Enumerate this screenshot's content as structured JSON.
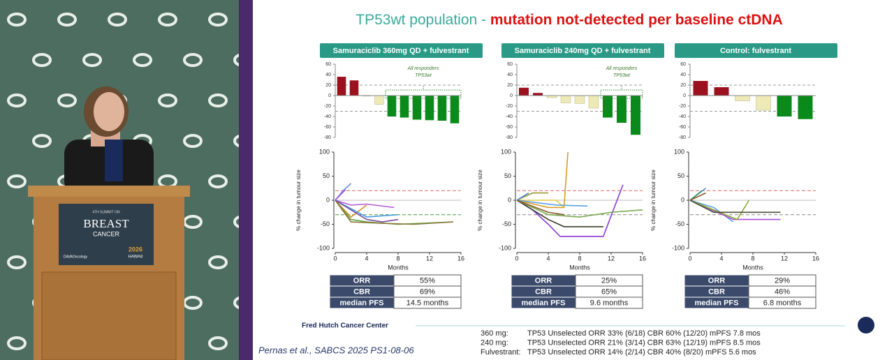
{
  "podium": {
    "line1": "4TH SUMMIT ON",
    "line2": "BREAST",
    "line3": "CANCER",
    "logo1": "DAVAOncology",
    "logo2a": "2026",
    "logo2b": "HAWAII"
  },
  "slide": {
    "title_lead": "TP53wt population - ",
    "title_emphasis": "mutation not-detected per baseline ctDNA",
    "panels": [
      {
        "header": "Samuraciclib 360mg QD + fulvestrant",
        "waterfall": {
          "type": "bar",
          "ylim": [
            -80,
            60
          ],
          "yticks": [
            60,
            40,
            20,
            0,
            -20,
            -40,
            -60,
            -80
          ],
          "reference_lines": [
            20,
            -30
          ],
          "values": [
            36,
            29,
            -1,
            -17,
            -40,
            -42,
            -46,
            -47,
            -48,
            -53
          ],
          "colors": [
            "#9b111e",
            "#9b111e",
            "#eeeab8",
            "#eeeab8",
            "#0a8a1a",
            "#0a8a1a",
            "#0a8a1a",
            "#0a8a1a",
            "#0a8a1a",
            "#0a8a1a"
          ],
          "annotation": [
            "All responders",
            "TP53wt"
          ]
        },
        "spider": {
          "type": "line",
          "ylabel": "% change in tumour size",
          "xlabel": "Months",
          "xlim": [
            0,
            16
          ],
          "xticks": [
            0,
            4,
            8,
            12,
            16
          ],
          "ylim": [
            -100,
            100
          ],
          "yticks": [
            100,
            50,
            0,
            -50,
            -100
          ],
          "reference_lines": [
            {
              "value": 20,
              "color": "#e06666"
            },
            {
              "value": -30,
              "color": "#3a9a3a"
            },
            {
              "value": 0,
              "color": "#bbbbbb"
            }
          ],
          "series": [
            {
              "color": "#6a8ee8",
              "x": [
                0,
                1,
                2
              ],
              "values": [
                0,
                20,
                35
              ]
            },
            {
              "color": "#a64fd6",
              "x": [
                0,
                1.3
              ],
              "values": [
                0,
                22
              ]
            },
            {
              "color": "#b560d8",
              "x": [
                0,
                2,
                4,
                7.5
              ],
              "values": [
                0,
                -10,
                -8,
                -15
              ]
            },
            {
              "color": "#e08a2a",
              "x": [
                0,
                2,
                4
              ],
              "values": [
                0,
                -35,
                -10
              ]
            },
            {
              "color": "#5aa040",
              "x": [
                0,
                2,
                4,
                8,
                15
              ],
              "values": [
                0,
                -40,
                -45,
                -50,
                -45
              ]
            },
            {
              "color": "#8a7a3a",
              "x": [
                0,
                2,
                6,
                10,
                15
              ],
              "values": [
                0,
                -45,
                -48,
                -50,
                -45
              ]
            },
            {
              "color": "#4a9ae0",
              "x": [
                0,
                4,
                8
              ],
              "values": [
                0,
                -35,
                -30
              ]
            },
            {
              "color": "#7a4aa0",
              "x": [
                0,
                4,
                6,
                8
              ],
              "values": [
                0,
                -40,
                -45,
                -40
              ]
            }
          ]
        },
        "table": [
          [
            "ORR",
            "55%"
          ],
          [
            "CBR",
            "69%"
          ],
          [
            "median PFS",
            "14.5 months"
          ]
        ]
      },
      {
        "header": "Samuraciclib 240mg QD + fulvestrant",
        "waterfall": {
          "type": "bar",
          "ylim": [
            -80,
            60
          ],
          "yticks": [
            60,
            40,
            20,
            0,
            -20,
            -40,
            -60,
            -80
          ],
          "reference_lines": [
            20,
            -30
          ],
          "values": [
            15,
            5,
            -4,
            -14,
            -15,
            -24,
            -42,
            -52,
            -75
          ],
          "colors": [
            "#9b111e",
            "#9b111e",
            "#eeeab8",
            "#eeeab8",
            "#eeeab8",
            "#eeeab8",
            "#0a8a1a",
            "#0a8a1a",
            "#0a8a1a"
          ],
          "annotation": [
            "All responders",
            "TP53wt"
          ]
        },
        "spider": {
          "type": "line",
          "ylabel": "% change in tumour size",
          "xlabel": "Months",
          "xlim": [
            0,
            16
          ],
          "xticks": [
            0,
            4,
            8,
            12,
            16
          ],
          "ylim": [
            -100,
            100
          ],
          "yticks": [
            100,
            50,
            0,
            -50,
            -100
          ],
          "reference_lines": [
            {
              "value": 20,
              "color": "#e06666"
            },
            {
              "value": -30,
              "color": "#888888"
            },
            {
              "value": 0,
              "color": "#bbbbbb"
            }
          ],
          "series": [
            {
              "color": "#d99a2a",
              "x": [
                0,
                4,
                6,
                6.5
              ],
              "values": [
                0,
                -15,
                -15,
                100
              ]
            },
            {
              "color": "#e8c840",
              "x": [
                0,
                3,
                5,
                6
              ],
              "values": [
                0,
                0,
                0,
                -15
              ]
            },
            {
              "color": "#9a9a30",
              "x": [
                0,
                2,
                4
              ],
              "values": [
                0,
                15,
                15
              ]
            },
            {
              "color": "#8a3ad8",
              "x": [
                0,
                2,
                4,
                5.5,
                11,
                13.5
              ],
              "values": [
                0,
                -20,
                -50,
                -75,
                -75,
                32
              ]
            },
            {
              "color": "#3a3a2a",
              "x": [
                0,
                4,
                6,
                11
              ],
              "values": [
                0,
                -40,
                -55,
                -55
              ]
            },
            {
              "color": "#7aaa50",
              "x": [
                0,
                4,
                8,
                12,
                16
              ],
              "values": [
                0,
                -30,
                -35,
                -25,
                -20
              ]
            },
            {
              "color": "#4a8ae0",
              "x": [
                0,
                1.5
              ],
              "values": [
                0,
                15
              ]
            },
            {
              "color": "#5aa0e8",
              "x": [
                0,
                5,
                9
              ],
              "values": [
                0,
                -10,
                -12
              ]
            },
            {
              "color": "#8a5a2a",
              "x": [
                0,
                4,
                6
              ],
              "values": [
                0,
                -25,
                -30
              ]
            }
          ]
        },
        "table": [
          [
            "ORR",
            "25%"
          ],
          [
            "CBR",
            "65%"
          ],
          [
            "median PFS",
            "9.6 months"
          ]
        ]
      },
      {
        "header": "Control: fulvestrant",
        "waterfall": {
          "type": "bar",
          "ylim": [
            -80,
            60
          ],
          "yticks": [
            60,
            40,
            20,
            0,
            -20,
            -40,
            -60,
            -80
          ],
          "reference_lines": [
            20,
            -30
          ],
          "values": [
            28,
            16,
            -10,
            -28,
            -40,
            -45
          ],
          "colors": [
            "#9b111e",
            "#9b111e",
            "#eeeab8",
            "#eeeab8",
            "#0a8a1a",
            "#0a8a1a"
          ]
        },
        "spider": {
          "type": "line",
          "ylabel": "% change in tumour size",
          "xlabel": "Months",
          "xlim": [
            0,
            16
          ],
          "xticks": [
            0,
            4,
            8,
            12,
            16
          ],
          "ylim": [
            -100,
            100
          ],
          "yticks": [
            100,
            50,
            0,
            -50,
            -100
          ],
          "reference_lines": [
            {
              "value": 20,
              "color": "#e06666"
            },
            {
              "value": -30,
              "color": "#888888"
            },
            {
              "value": 0,
              "color": "#bbbbbb"
            }
          ],
          "series": [
            {
              "color": "#4a8ae0",
              "x": [
                0,
                2
              ],
              "values": [
                0,
                25
              ]
            },
            {
              "color": "#3a9a5a",
              "x": [
                0,
                1.5
              ],
              "values": [
                0,
                20
              ]
            },
            {
              "color": "#8a5a2a",
              "x": [
                0,
                2
              ],
              "values": [
                0,
                15
              ]
            },
            {
              "color": "#5aa0e8",
              "x": [
                0,
                3,
                5.5
              ],
              "values": [
                0,
                -15,
                -45
              ]
            },
            {
              "color": "#a64fd6",
              "x": [
                0,
                5.5,
                8,
                11.5
              ],
              "values": [
                0,
                -40,
                -40,
                -40
              ]
            },
            {
              "color": "#8aaa30",
              "x": [
                0,
                6,
                7.5
              ],
              "values": [
                0,
                -40,
                0
              ]
            },
            {
              "color": "#4a4a3a",
              "x": [
                0,
                3,
                8,
                11.5
              ],
              "values": [
                0,
                -25,
                -25,
                -25
              ]
            }
          ]
        },
        "table": [
          [
            "ORR",
            "29%"
          ],
          [
            "CBR",
            "46%"
          ],
          [
            "median PFS",
            "6.8 months"
          ]
        ]
      }
    ],
    "institution": "Fred Hutch Cancer Center",
    "citation": "Pernas et al., SABCS 2025 PS1-08-06",
    "notes": [
      [
        "360 mg:",
        "TP53 Unselected ORR 33% (6/18)  CBR 60% (12/20)  mPFS 7.8 mos"
      ],
      [
        "240 mg:",
        "TP53 Unselected ORR 21% (3/14)  CBR 63% (12/19)  mPFS 8.5 mos"
      ],
      [
        "Fulvestrant:",
        "TP53 Unselected ORR 14% (2/14)  CBR 40% (8/20)  mPFS 5.6 mos"
      ]
    ]
  }
}
